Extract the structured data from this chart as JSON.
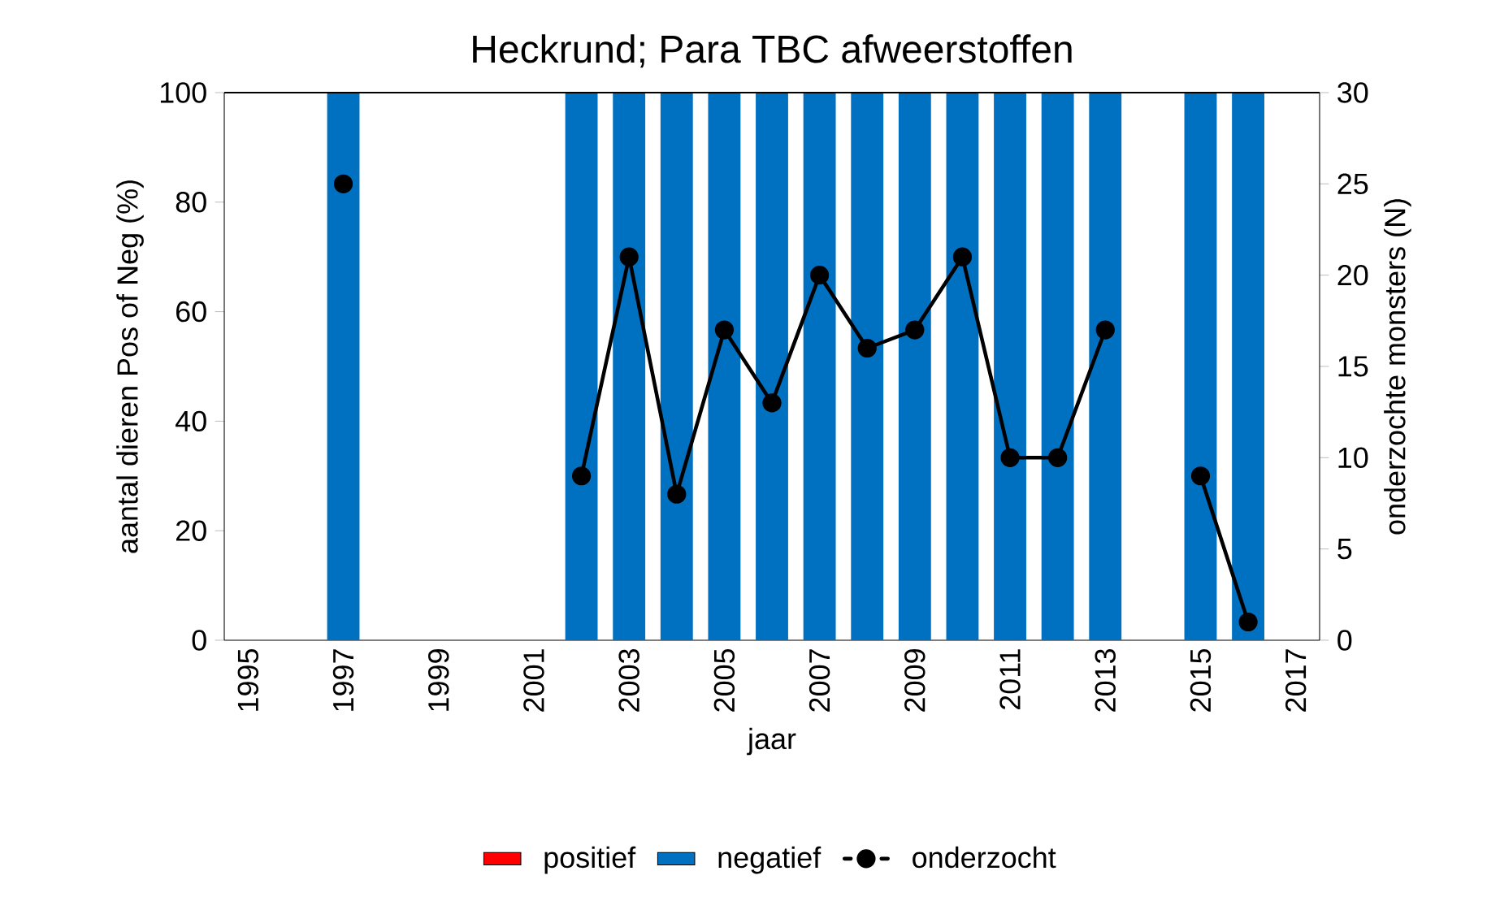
{
  "chart_data": {
    "type": "bar",
    "title": "Heckrund;  Para TBC afweerstoffen",
    "xlabel": "jaar",
    "ylabel": "aantal dieren Pos of Neg (%)",
    "y2label": "onderzochte monsters (N)",
    "x": [
      1997,
      2000,
      2002,
      2003,
      2004,
      2005,
      2006,
      2007,
      2008,
      2009,
      2010,
      2011,
      2012,
      2013,
      2014,
      2015,
      2016
    ],
    "stacked": true,
    "series": [
      {
        "name": "positief",
        "color": "#ff0000",
        "values": [
          0,
          null,
          0,
          0,
          0,
          0,
          0,
          0,
          0,
          0,
          0,
          0,
          0,
          0,
          null,
          0,
          0
        ]
      },
      {
        "name": "negatief",
        "color": "#0070c0",
        "values": [
          100,
          null,
          100,
          100,
          100,
          100,
          100,
          100,
          100,
          100,
          100,
          100,
          100,
          100,
          null,
          100,
          100
        ]
      },
      {
        "name": "onderzocht",
        "type": "line",
        "axis": "y2",
        "color": "#000000",
        "marker": "circle",
        "line_style": "solid",
        "values": [
          25,
          null,
          9,
          21,
          8,
          17,
          13,
          20,
          16,
          17,
          21,
          10,
          10,
          17,
          null,
          9,
          1
        ]
      }
    ],
    "xlim": [
      1994.5,
      2017.5
    ],
    "xticks": [
      1995,
      1997,
      1999,
      2001,
      2003,
      2005,
      2007,
      2009,
      2011,
      2013,
      2015,
      2017
    ],
    "ylim": [
      0,
      100
    ],
    "yticks": [
      0,
      20,
      40,
      60,
      80,
      100
    ],
    "y2lim": [
      0,
      30
    ],
    "y2ticks": [
      0,
      5,
      10,
      15,
      20,
      25,
      30
    ],
    "legend": "bottom",
    "grid": false
  }
}
